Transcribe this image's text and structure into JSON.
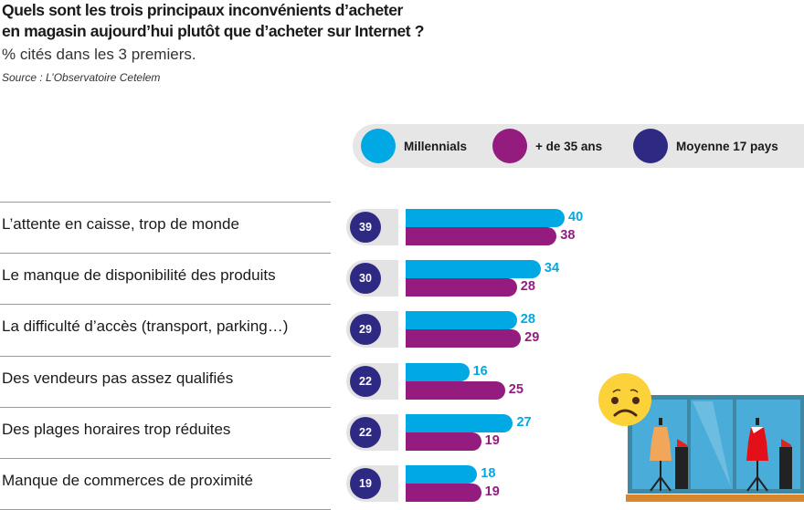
{
  "header": {
    "title_line1": "Quels sont les trois principaux inconvénients d’acheter",
    "title_line2": "en magasin aujourd’hui plutôt que d’acheter sur Internet ?",
    "subtitle": "% cités dans les 3 premiers.",
    "source": "Source : L’Observatoire Cetelem"
  },
  "colors": {
    "millennials": "#00a8e4",
    "over35": "#951c7f",
    "average": "#2e2a84"
  },
  "chart_data": {
    "type": "bar",
    "orientation": "horizontal",
    "title": "Quels sont les trois principaux inconvénients d’acheter en magasin aujourd’hui plutôt que d’acheter sur Internet ?",
    "subtitle": "% cités dans les 3 premiers.",
    "xlim": [
      0,
      45
    ],
    "legend": [
      "Millennials",
      "+ de 35 ans",
      "Moyenne 17 pays"
    ],
    "legend_position": "top-right",
    "categories": [
      "L’attente en caisse, trop de monde",
      "Le manque de disponibilité des produits",
      "La difficulté d’accès (transport, parking…)",
      "Des vendeurs pas assez qualifiés",
      "Des plages horaires trop réduites",
      "Manque de commerces de proximité"
    ],
    "series": [
      {
        "name": "Millennials",
        "values": [
          40,
          34,
          28,
          16,
          27,
          18
        ]
      },
      {
        "name": "+ de 35 ans",
        "values": [
          38,
          28,
          29,
          25,
          19,
          19
        ]
      },
      {
        "name": "Moyenne 17 pays",
        "values": [
          39,
          30,
          29,
          22,
          22,
          19
        ]
      }
    ]
  },
  "illustration": {
    "icon": "sad-face-shop-window-icon"
  }
}
